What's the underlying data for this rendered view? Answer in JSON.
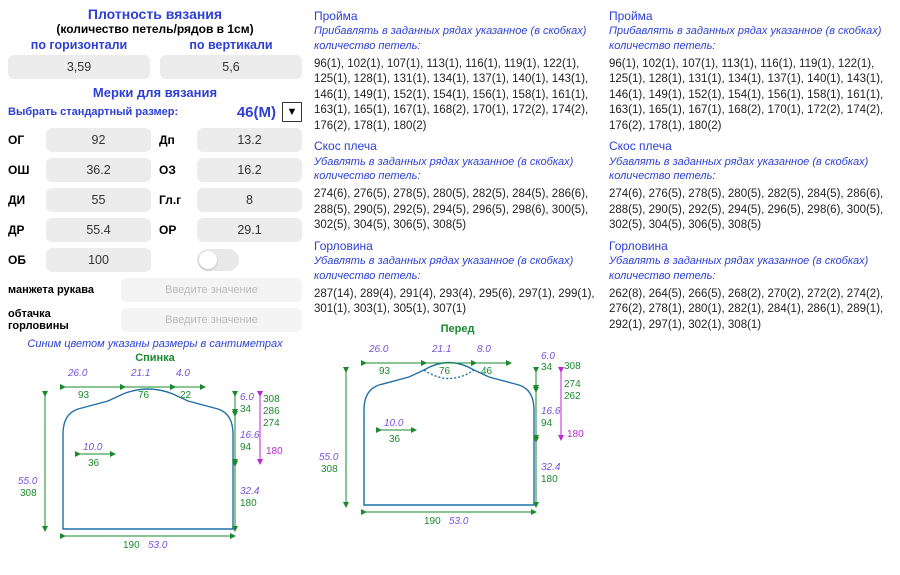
{
  "density": {
    "title": "Плотность вязания",
    "subtitle": "(количество петель/рядов в 1см)",
    "horiz_label": "по горизонтали",
    "vert_label": "по вертикали",
    "horiz_val": "3,59",
    "vert_val": "5,6"
  },
  "measurements": {
    "title": "Мерки для вязания",
    "std_label": "Выбрать стандартный размер:",
    "size": "46(M)",
    "rows": [
      {
        "l1": "ОГ",
        "v1": "92",
        "l2": "Дп",
        "v2": "13.2"
      },
      {
        "l1": "ОШ",
        "v1": "36.2",
        "l2": "ОЗ",
        "v2": "16.2"
      },
      {
        "l1": "ДИ",
        "v1": "55",
        "l2": "Гл.г",
        "v2": "8"
      },
      {
        "l1": "ДР",
        "v1": "55.4",
        "l2": "ОР",
        "v2": "29.1"
      },
      {
        "l1": "ОБ",
        "v1": "100",
        "l2": "",
        "v2": ""
      }
    ],
    "manzheta_label": "манжета рукава",
    "obtachka_label": "обтачка горловины",
    "placeholder": "Введите значение",
    "note": "Синим цветом указаны размеры в сантиметрах"
  },
  "diag": {
    "back_title": "Спинка",
    "front_title": "Перед",
    "back": {
      "top_26": "26.0",
      "top_93": "93",
      "top_211": "21.1",
      "top_76": "76",
      "top_40": "4.0",
      "top_22": "22",
      "r_60": "6.0",
      "r_34": "34",
      "r_308": "308",
      "r_286": "286",
      "r_274": "274",
      "r_166": "16.6",
      "r_94": "94",
      "r_180": "180",
      "mid_100": "10.0",
      "mid_36": "36",
      "l_550": "55.0",
      "l_308": "308",
      "r_324": "32.4",
      "r_180b": "180",
      "b_190": "190",
      "b_530": "53.0"
    },
    "front": {
      "top_26": "26.0",
      "top_93": "93",
      "top_211": "21.1",
      "top_76": "76",
      "top_80": "8.0",
      "top_46": "46",
      "r_60": "6.0",
      "r_34": "34",
      "r_308": "308",
      "r_274": "274",
      "r_262": "262",
      "r_166": "16.6",
      "r_94": "94",
      "r_180": "180",
      "mid_100": "10.0",
      "mid_36": "36",
      "l_550": "55.0",
      "l_308": "308",
      "r_324": "32.4",
      "r_180b": "180",
      "b_190": "190",
      "b_530": "53.0"
    }
  },
  "sections": {
    "proima_h": "Пройма",
    "proima_sub": "Прибавлять в заданных рядах указанное (в скобках) количество петель:",
    "proima_body": "96(1), 102(1), 107(1), 113(1), 116(1), 119(1), 122(1), 125(1), 128(1), 131(1), 134(1), 137(1), 140(1), 143(1), 146(1), 149(1), 152(1), 154(1), 156(1), 158(1), 161(1), 163(1), 165(1), 167(1), 168(2), 170(1), 172(2), 174(2), 176(2), 178(1), 180(2)",
    "skos_h": "Скос плеча",
    "skos_sub": "Убавлять в заданных рядах указанное (в скобках) количество петель:",
    "skos_body": "274(6), 276(5), 278(5), 280(5), 282(5), 284(5), 286(6), 288(5), 290(5), 292(5), 294(5), 296(5), 298(6), 300(5), 302(5), 304(5), 306(5), 308(5)",
    "gor_h": "Горловина",
    "gor_sub": "Убавлять в заданных рядах указанное (в скобках) количество петель:",
    "gor_body_back": "287(14), 289(4), 291(4), 293(4), 295(6), 297(1), 299(1), 301(1), 303(1), 305(1), 307(1)",
    "gor_body_front": "262(8), 264(5), 266(5), 268(2), 270(2), 272(2), 274(2), 276(2), 278(1), 280(1), 282(1), 284(1), 286(1), 289(1), 292(1), 297(1), 302(1), 308(1)"
  },
  "colors": {
    "blue": "#2d3fd4",
    "green": "#1b8a2e",
    "purple": "#7951d8",
    "magenta": "#c026d3",
    "shape": "#1f6fa8",
    "input_bg": "#ececec"
  }
}
